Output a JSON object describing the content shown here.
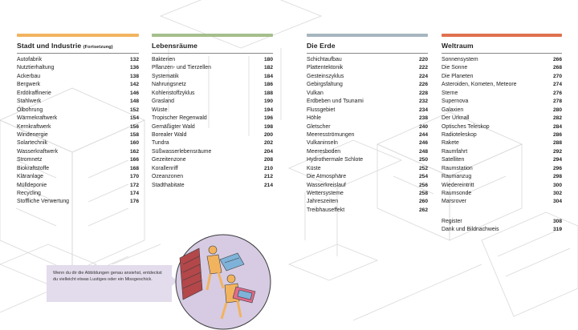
{
  "columns": [
    {
      "title": "Stadt und Industrie",
      "title_suffix": "(Fortsetzung)",
      "color": "#f2b35f",
      "items": [
        {
          "label": "Autofabrik",
          "page": "132"
        },
        {
          "label": "Nutztierhaltung",
          "page": "136"
        },
        {
          "label": "Ackerbau",
          "page": "138"
        },
        {
          "label": "Bergwerk",
          "page": "142"
        },
        {
          "label": "Erdölraffinerie",
          "page": "146"
        },
        {
          "label": "Stahlwerk",
          "page": "148"
        },
        {
          "label": "Ölbohrung",
          "page": "152"
        },
        {
          "label": "Wärmekraftwerk",
          "page": "154"
        },
        {
          "label": "Kernkraftwerk",
          "page": "156"
        },
        {
          "label": "Windenergie",
          "page": "158"
        },
        {
          "label": "Solartechnik",
          "page": "160"
        },
        {
          "label": "Wasserkraftwerk",
          "page": "162"
        },
        {
          "label": "Stromnetz",
          "page": "166"
        },
        {
          "label": "Biokraftstoffe",
          "page": "168"
        },
        {
          "label": "Kläranlage",
          "page": "170"
        },
        {
          "label": "Mülldeponie",
          "page": "172"
        },
        {
          "label": "Recycling",
          "page": "174"
        },
        {
          "label": "Stoffliche Verwertung",
          "page": "176"
        }
      ]
    },
    {
      "title": "Lebensräume",
      "title_suffix": "",
      "color": "#a5bf8c",
      "items": [
        {
          "label": "Bakterien",
          "page": "180"
        },
        {
          "label": "Pflanzen- und Tierzellen",
          "page": "182"
        },
        {
          "label": "Systematik",
          "page": "184"
        },
        {
          "label": "Nahrungsnetz",
          "page": "186"
        },
        {
          "label": "Kohlenstoffzyklus",
          "page": "188"
        },
        {
          "label": "Grasland",
          "page": "190"
        },
        {
          "label": "Wüste",
          "page": "194"
        },
        {
          "label": "Tropischer Regenwald",
          "page": "196"
        },
        {
          "label": "Gemäßigter Wald",
          "page": "198"
        },
        {
          "label": "Borealer Wald",
          "page": "200"
        },
        {
          "label": "Tundra",
          "page": "202"
        },
        {
          "label": "Süßwasserlebensräume",
          "page": "204"
        },
        {
          "label": "Gezeitenzone",
          "page": "208"
        },
        {
          "label": "Korallenriff",
          "page": "210"
        },
        {
          "label": "Ozeanzonen",
          "page": "212"
        },
        {
          "label": "Stadthabitate",
          "page": "214"
        }
      ]
    },
    {
      "title": "Die Erde",
      "title_suffix": "",
      "color": "#a7b6c0",
      "items": [
        {
          "label": "Schichtaufbau",
          "page": "220"
        },
        {
          "label": "Plattentektonik",
          "page": "222"
        },
        {
          "label": "Gesteinszyklus",
          "page": "224"
        },
        {
          "label": "Gebirgsfaltung",
          "page": "226"
        },
        {
          "label": "Vulkan",
          "page": "228"
        },
        {
          "label": "Erdbeben und Tsunami",
          "page": "232"
        },
        {
          "label": "Flussgebiet",
          "page": "234"
        },
        {
          "label": "Höhle",
          "page": "238"
        },
        {
          "label": "Gletscher",
          "page": "240"
        },
        {
          "label": "Meeresströmungen",
          "page": "244"
        },
        {
          "label": "Vulkaninseln",
          "page": "246"
        },
        {
          "label": "Meeresboden",
          "page": "248"
        },
        {
          "label": "Hydrothermale Schlote",
          "page": "250"
        },
        {
          "label": "Küste",
          "page": "252"
        },
        {
          "label": "Die Atmosphäre",
          "page": "254"
        },
        {
          "label": "Wasserkreislauf",
          "page": "256"
        },
        {
          "label": "Wettersysteme",
          "page": "258"
        },
        {
          "label": "Jahreszeiten",
          "page": "260"
        },
        {
          "label": "Treibhauseffekt",
          "page": "262"
        }
      ]
    },
    {
      "title": "Weltraum",
      "title_suffix": "",
      "color": "#e0714f",
      "items": [
        {
          "label": "Sonnensystem",
          "page": "266"
        },
        {
          "label": "Die Sonne",
          "page": "268"
        },
        {
          "label": "Die Planeten",
          "page": "270"
        },
        {
          "label": "Asteroiden, Kometen, Meteore",
          "page": "274"
        },
        {
          "label": "Sterne",
          "page": "276"
        },
        {
          "label": "Supernova",
          "page": "278"
        },
        {
          "label": "Galaxien",
          "page": "280"
        },
        {
          "label": "Der Urknall",
          "page": "282"
        },
        {
          "label": "Optisches Teleskop",
          "page": "284"
        },
        {
          "label": "Radioteleskop",
          "page": "286"
        },
        {
          "label": "Rakete",
          "page": "288"
        },
        {
          "label": "Raumfahrt",
          "page": "292"
        },
        {
          "label": "Satelliten",
          "page": "294"
        },
        {
          "label": "Raumstation",
          "page": "296"
        },
        {
          "label": "Raumanzug",
          "page": "298"
        },
        {
          "label": "Wiedereintritt",
          "page": "300"
        },
        {
          "label": "Raumsonde",
          "page": "302"
        },
        {
          "label": "Marsrover",
          "page": "304"
        }
      ],
      "extra": [
        {
          "label": "Register",
          "page": "308"
        },
        {
          "label": "Dank und Bildnachweis",
          "page": "319"
        }
      ]
    }
  ],
  "note": {
    "text": "Wenn du dir die Abbildungen genau ansiehst, entdeckst du vielleicht etwas Lustiges oder ein Missgeschick."
  },
  "colors": {
    "note_bg": "#e3dcec",
    "circle_bg": "#d6cbe3",
    "figure": "#f2b35f"
  }
}
